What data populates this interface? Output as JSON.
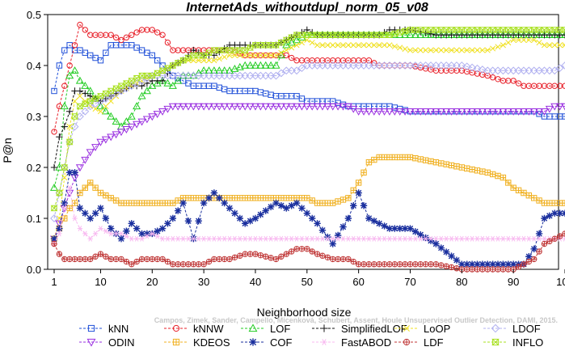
{
  "chart_data": {
    "type": "line",
    "title": "InternetAds_withoutdupl_norm_05_v08",
    "xlabel": "Neighborhood size",
    "ylabel": "P@n",
    "xlim": [
      1,
      100
    ],
    "ylim": [
      0,
      0.5
    ],
    "x_ticks": [
      1,
      10,
      20,
      30,
      40,
      50,
      60,
      70,
      80,
      90,
      100
    ],
    "y_ticks": [
      0.0,
      0.1,
      0.2,
      0.3,
      0.4,
      0.5
    ],
    "grid": false,
    "legend_position": "bottom",
    "watermark": "Campos, Zimek, Sander, Campello, Micenková, Schubert, Assent, Houle Unsupervised Outlier Detection, DAMI, 2015.",
    "x_knots": [
      1,
      2,
      3,
      4,
      5,
      6,
      8,
      10,
      12,
      14,
      16,
      18,
      20,
      22,
      24,
      26,
      28,
      30,
      32,
      35,
      38,
      40,
      44,
      46,
      48,
      50,
      52,
      55,
      58,
      60,
      62,
      64,
      66,
      70,
      75,
      80,
      85,
      88,
      90,
      92,
      94,
      96,
      98,
      100
    ],
    "series": [
      {
        "name": "kNN",
        "color": "#1f4fd8",
        "marker": "square",
        "values": [
          0.35,
          0.4,
          0.43,
          0.44,
          0.43,
          0.43,
          0.42,
          0.41,
          0.44,
          0.44,
          0.44,
          0.43,
          0.42,
          0.4,
          0.38,
          0.37,
          0.36,
          0.36,
          0.36,
          0.35,
          0.35,
          0.35,
          0.34,
          0.34,
          0.34,
          0.33,
          0.33,
          0.33,
          0.32,
          0.32,
          0.32,
          0.32,
          0.32,
          0.31,
          0.31,
          0.31,
          0.31,
          0.31,
          0.31,
          0.31,
          0.31,
          0.3,
          0.3,
          0.3
        ]
      },
      {
        "name": "kNNW",
        "color": "#e8202a",
        "marker": "circle",
        "values": [
          0.27,
          0.32,
          0.36,
          0.4,
          0.44,
          0.48,
          0.46,
          0.46,
          0.46,
          0.45,
          0.46,
          0.47,
          0.47,
          0.46,
          0.43,
          0.43,
          0.43,
          0.43,
          0.43,
          0.43,
          0.42,
          0.42,
          0.42,
          0.42,
          0.41,
          0.41,
          0.41,
          0.41,
          0.41,
          0.41,
          0.41,
          0.4,
          0.4,
          0.4,
          0.39,
          0.39,
          0.38,
          0.37,
          0.37,
          0.36,
          0.36,
          0.36,
          0.36,
          0.36
        ]
      },
      {
        "name": "LOF",
        "color": "#22cc22",
        "marker": "triangle-up",
        "values": [
          0.16,
          0.2,
          0.32,
          0.38,
          0.39,
          0.37,
          0.35,
          0.32,
          0.3,
          0.28,
          0.3,
          0.34,
          0.36,
          0.37,
          0.36,
          0.38,
          0.38,
          0.39,
          0.39,
          0.39,
          0.4,
          0.4,
          0.4,
          0.44,
          0.45,
          0.46,
          0.46,
          0.46,
          0.46,
          0.46,
          0.46,
          0.46,
          0.46,
          0.46,
          0.46,
          0.46,
          0.46,
          0.46,
          0.46,
          0.46,
          0.46,
          0.46,
          0.46,
          0.46
        ]
      },
      {
        "name": "SimplifiedLOF",
        "color": "#111111",
        "marker": "plus",
        "values": [
          0.2,
          0.26,
          0.28,
          0.31,
          0.35,
          0.35,
          0.34,
          0.33,
          0.34,
          0.35,
          0.36,
          0.36,
          0.37,
          0.37,
          0.4,
          0.41,
          0.43,
          0.42,
          0.42,
          0.44,
          0.44,
          0.44,
          0.44,
          0.45,
          0.46,
          0.47,
          0.46,
          0.46,
          0.46,
          0.46,
          0.46,
          0.46,
          0.47,
          0.47,
          0.46,
          0.46,
          0.46,
          0.46,
          0.46,
          0.46,
          0.46,
          0.46,
          0.46,
          0.46
        ]
      },
      {
        "name": "LoOP",
        "color": "#f0e020",
        "marker": "cross",
        "values": [
          0.06,
          0.1,
          0.18,
          0.28,
          0.33,
          0.34,
          0.32,
          0.31,
          0.33,
          0.35,
          0.36,
          0.37,
          0.38,
          0.39,
          0.4,
          0.41,
          0.41,
          0.41,
          0.41,
          0.42,
          0.42,
          0.42,
          0.42,
          0.43,
          0.44,
          0.45,
          0.44,
          0.44,
          0.44,
          0.44,
          0.44,
          0.44,
          0.44,
          0.43,
          0.43,
          0.43,
          0.43,
          0.44,
          0.45,
          0.45,
          0.45,
          0.44,
          0.44,
          0.44
        ]
      },
      {
        "name": "LDOF",
        "color": "#b0b0f0",
        "marker": "diamond",
        "values": [
          0.1,
          0.15,
          0.2,
          0.25,
          0.28,
          0.3,
          0.32,
          0.33,
          0.34,
          0.35,
          0.36,
          0.37,
          0.38,
          0.38,
          0.38,
          0.38,
          0.38,
          0.38,
          0.38,
          0.38,
          0.38,
          0.38,
          0.38,
          0.39,
          0.39,
          0.4,
          0.4,
          0.4,
          0.4,
          0.4,
          0.4,
          0.4,
          0.4,
          0.4,
          0.4,
          0.4,
          0.39,
          0.39,
          0.39,
          0.39,
          0.39,
          0.39,
          0.39,
          0.4
        ]
      },
      {
        "name": "ODIN",
        "color": "#9a30e0",
        "marker": "triangle-down",
        "values": [
          0.06,
          0.09,
          0.12,
          0.15,
          0.18,
          0.2,
          0.23,
          0.25,
          0.26,
          0.27,
          0.28,
          0.29,
          0.3,
          0.31,
          0.32,
          0.32,
          0.32,
          0.32,
          0.32,
          0.32,
          0.32,
          0.32,
          0.32,
          0.32,
          0.32,
          0.32,
          0.32,
          0.32,
          0.32,
          0.31,
          0.31,
          0.31,
          0.31,
          0.31,
          0.31,
          0.31,
          0.31,
          0.31,
          0.31,
          0.31,
          0.31,
          0.31,
          0.32,
          0.32
        ]
      },
      {
        "name": "KDEOS",
        "color": "#f0b020",
        "marker": "square-cross",
        "values": [
          0.06,
          0.08,
          0.1,
          0.12,
          0.13,
          0.15,
          0.17,
          0.15,
          0.14,
          0.13,
          0.13,
          0.13,
          0.13,
          0.13,
          0.13,
          0.14,
          0.14,
          0.14,
          0.14,
          0.14,
          0.14,
          0.14,
          0.14,
          0.14,
          0.14,
          0.14,
          0.13,
          0.13,
          0.14,
          0.17,
          0.21,
          0.22,
          0.22,
          0.22,
          0.21,
          0.2,
          0.19,
          0.18,
          0.16,
          0.15,
          0.14,
          0.13,
          0.13,
          0.13
        ]
      },
      {
        "name": "COF",
        "color": "#1a2f9e",
        "marker": "asterisk",
        "values": [
          0.06,
          0.08,
          0.13,
          0.19,
          0.19,
          0.12,
          0.1,
          0.12,
          0.08,
          0.06,
          0.09,
          0.07,
          0.07,
          0.08,
          0.1,
          0.13,
          0.06,
          0.13,
          0.15,
          0.12,
          0.09,
          0.1,
          0.13,
          0.12,
          0.13,
          0.11,
          0.09,
          0.05,
          0.1,
          0.15,
          0.1,
          0.09,
          0.08,
          0.08,
          0.05,
          0.01,
          0.01,
          0.01,
          0.01,
          0.01,
          0.04,
          0.1,
          0.11,
          0.11
        ]
      },
      {
        "name": "FastABOD",
        "color": "#f8b8f0",
        "marker": "star",
        "values": [
          0.05,
          0.07,
          0.12,
          0.16,
          0.1,
          0.08,
          0.06,
          0.08,
          0.07,
          0.07,
          0.06,
          0.06,
          0.07,
          0.06,
          0.06,
          0.06,
          0.06,
          0.06,
          0.06,
          0.06,
          0.06,
          0.06,
          0.06,
          0.06,
          0.06,
          0.06,
          0.06,
          0.06,
          0.06,
          0.06,
          0.06,
          0.06,
          0.06,
          0.06,
          0.06,
          0.06,
          0.06,
          0.06,
          0.06,
          0.06,
          0.06,
          0.06,
          0.06,
          0.06
        ]
      },
      {
        "name": "LDF",
        "color": "#c03838",
        "marker": "circle-plus",
        "values": [
          0.05,
          0.03,
          0.02,
          0.02,
          0.02,
          0.02,
          0.02,
          0.03,
          0.02,
          0.02,
          0.01,
          0.02,
          0.02,
          0.02,
          0.01,
          0.01,
          0.01,
          0.01,
          0.02,
          0.02,
          0.03,
          0.03,
          0.02,
          0.03,
          0.04,
          0.04,
          0.03,
          0.02,
          0.02,
          0.01,
          0.01,
          0.01,
          0.01,
          0.01,
          0.01,
          0.0,
          0.0,
          0.0,
          0.0,
          0.01,
          0.02,
          0.05,
          0.06,
          0.07
        ]
      },
      {
        "name": "INFLO",
        "color": "#a8e020",
        "marker": "hourglass",
        "values": [
          0.12,
          0.15,
          0.2,
          0.25,
          0.3,
          0.32,
          0.33,
          0.34,
          0.35,
          0.36,
          0.37,
          0.38,
          0.38,
          0.39,
          0.4,
          0.41,
          0.42,
          0.42,
          0.43,
          0.43,
          0.43,
          0.44,
          0.44,
          0.45,
          0.46,
          0.46,
          0.46,
          0.46,
          0.46,
          0.46,
          0.46,
          0.46,
          0.46,
          0.47,
          0.47,
          0.47,
          0.47,
          0.47,
          0.47,
          0.47,
          0.47,
          0.47,
          0.47,
          0.47
        ]
      }
    ]
  }
}
